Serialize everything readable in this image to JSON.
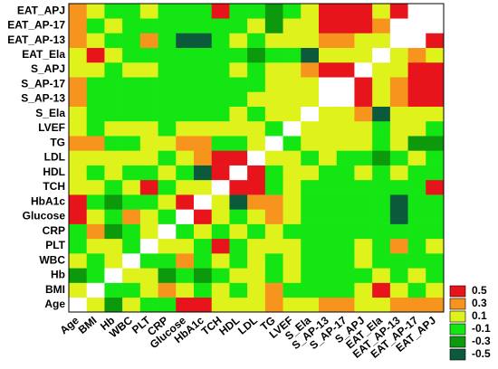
{
  "chart_data": {
    "type": "heatmap",
    "categories": [
      "Age",
      "BMI",
      "Hb",
      "WBC",
      "PLT",
      "CRP",
      "Glucose",
      "HbA1c",
      "TCH",
      "HDL",
      "LDL",
      "TG",
      "LVEF",
      "S_Ela",
      "S_AP-13",
      "S_AP-17",
      "S_APJ",
      "EAT_Ela",
      "EAT_AP-13",
      "EAT_AP-17",
      "EAT_APJ"
    ],
    "z": [
      [
        1,
        0.1,
        -0.3,
        0.1,
        -0.1,
        -0.1,
        0.5,
        0.5,
        0.1,
        0.1,
        0.1,
        0.3,
        0.1,
        0.1,
        0.3,
        0.3,
        0.1,
        0.1,
        0.3,
        0.3,
        0.3
      ],
      [
        0.1,
        1,
        -0.1,
        -0.1,
        0.1,
        0.3,
        0.1,
        -0.1,
        0.1,
        -0.1,
        0.1,
        0.3,
        -0.1,
        -0.1,
        -0.1,
        -0.1,
        0.1,
        0.5,
        0.1,
        -0.1,
        0.1
      ],
      [
        -0.3,
        -0.1,
        1,
        0.1,
        0.1,
        -0.3,
        -0.1,
        -0.3,
        -0.1,
        0.1,
        0.1,
        -0.1,
        0.1,
        -0.1,
        -0.1,
        -0.1,
        -0.1,
        0.1,
        -0.1,
        0.1,
        -0.1
      ],
      [
        0.1,
        -0.1,
        0.1,
        1,
        -0.1,
        -0.1,
        0.3,
        -0.1,
        0.1,
        -0.1,
        0.1,
        -0.1,
        0.1,
        -0.1,
        -0.1,
        -0.1,
        0.1,
        -0.1,
        -0.1,
        -0.1,
        -0.1
      ],
      [
        -0.1,
        0.1,
        0.1,
        -0.1,
        1,
        0.1,
        0.1,
        -0.1,
        0.5,
        -0.1,
        0.1,
        0.1,
        0.1,
        -0.1,
        -0.1,
        -0.1,
        0.1,
        -0.1,
        0.3,
        -0.1,
        0.1
      ],
      [
        -0.1,
        0.3,
        -0.3,
        -0.1,
        0.1,
        1,
        -0.1,
        0.1,
        -0.1,
        0.1,
        -0.1,
        0.1,
        -0.1,
        -0.1,
        -0.1,
        -0.1,
        -0.1,
        -0.1,
        -0.1,
        -0.1,
        -0.1
      ],
      [
        0.5,
        0.1,
        -0.1,
        0.3,
        0.1,
        -0.1,
        1,
        0.5,
        0.1,
        -0.1,
        0.1,
        0.3,
        0.1,
        -0.1,
        -0.1,
        -0.1,
        -0.1,
        -0.1,
        -0.5,
        -0.1,
        -0.1
      ],
      [
        0.5,
        -0.1,
        -0.3,
        -0.1,
        -0.1,
        0.1,
        0.5,
        1,
        0.1,
        -0.5,
        0.3,
        0.3,
        0.1,
        -0.1,
        -0.1,
        -0.1,
        -0.1,
        -0.1,
        -0.5,
        -0.1,
        -0.1
      ],
      [
        0.1,
        0.1,
        -0.1,
        0.1,
        0.5,
        -0.1,
        0.1,
        0.1,
        1,
        0.5,
        0.5,
        -0.1,
        0.1,
        -0.1,
        -0.1,
        -0.1,
        -0.1,
        -0.1,
        -0.1,
        -0.1,
        0.5
      ],
      [
        0.1,
        -0.1,
        0.1,
        -0.1,
        -0.1,
        0.1,
        -0.1,
        -0.5,
        0.5,
        1,
        0.5,
        -0.1,
        0.1,
        0.1,
        -0.1,
        -0.1,
        0.1,
        -0.1,
        0.1,
        -0.1,
        -0.1
      ],
      [
        0.1,
        0.1,
        0.1,
        0.1,
        0.1,
        -0.1,
        0.1,
        0.3,
        0.5,
        0.5,
        1,
        0.1,
        0.1,
        -0.1,
        0.1,
        -0.1,
        -0.1,
        -0.3,
        -0.1,
        0.1,
        -0.1
      ],
      [
        0.3,
        0.3,
        -0.1,
        -0.1,
        0.1,
        0.1,
        0.3,
        0.3,
        -0.1,
        -0.1,
        0.1,
        1,
        -0.1,
        0.1,
        0.1,
        0.1,
        0.1,
        -0.1,
        0.1,
        -0.3,
        -0.3
      ],
      [
        0.1,
        -0.1,
        0.1,
        0.1,
        0.1,
        -0.1,
        0.1,
        0.1,
        0.1,
        0.1,
        0.1,
        -0.1,
        1,
        0.1,
        0.1,
        0.1,
        0.1,
        -0.1,
        0.1,
        0.1,
        -0.1
      ],
      [
        0.1,
        -0.1,
        -0.1,
        -0.1,
        -0.1,
        -0.1,
        -0.1,
        -0.1,
        -0.1,
        0.1,
        -0.1,
        0.1,
        0.1,
        1,
        0.1,
        0.1,
        0.3,
        -0.5,
        0.1,
        0.1,
        0.1
      ],
      [
        0.3,
        -0.1,
        -0.1,
        -0.1,
        -0.1,
        -0.1,
        -0.1,
        -0.1,
        -0.1,
        -0.1,
        0.1,
        0.1,
        0.1,
        0.1,
        1,
        0.9,
        0.5,
        0.1,
        0.3,
        0.5,
        0.5
      ],
      [
        0.3,
        -0.1,
        -0.1,
        -0.1,
        -0.1,
        -0.1,
        -0.1,
        -0.1,
        -0.1,
        -0.1,
        -0.1,
        0.1,
        0.1,
        0.1,
        0.9,
        1,
        0.5,
        0.1,
        0.3,
        0.5,
        0.5
      ],
      [
        0.1,
        0.1,
        -0.1,
        0.1,
        0.1,
        -0.1,
        -0.1,
        -0.1,
        -0.1,
        0.1,
        -0.1,
        0.1,
        0.1,
        0.3,
        0.5,
        0.5,
        1,
        0.1,
        0.1,
        0.5,
        0.5
      ],
      [
        0.1,
        0.5,
        0.1,
        -0.1,
        -0.1,
        -0.1,
        -0.1,
        -0.1,
        -0.1,
        -0.1,
        -0.3,
        -0.1,
        -0.1,
        -0.5,
        0.1,
        0.1,
        0.1,
        1,
        0.1,
        0.3,
        0.1
      ],
      [
        0.3,
        0.1,
        -0.1,
        -0.1,
        0.3,
        -0.1,
        -0.5,
        -0.5,
        -0.1,
        0.1,
        -0.1,
        0.1,
        0.1,
        0.1,
        0.3,
        0.3,
        0.1,
        0.1,
        1,
        0.9,
        0.5
      ],
      [
        0.3,
        -0.1,
        0.1,
        -0.1,
        -0.1,
        -0.1,
        -0.1,
        -0.1,
        -0.1,
        -0.1,
        0.1,
        -0.3,
        0.1,
        0.1,
        0.5,
        0.5,
        0.5,
        0.3,
        0.9,
        1,
        0.9
      ],
      [
        0.3,
        0.1,
        -0.1,
        -0.1,
        0.1,
        -0.1,
        -0.1,
        -0.1,
        0.5,
        -0.1,
        -0.1,
        -0.3,
        -0.1,
        0.1,
        0.5,
        0.5,
        0.5,
        0.1,
        0.5,
        0.9,
        1
      ]
    ],
    "colorbar": {
      "ticks": [
        0.5,
        0.3,
        0.1,
        -0.1,
        -0.3,
        -0.5
      ],
      "colors": [
        "#e8141b",
        "#f7941d",
        "#dff21c",
        "#14e614",
        "#0c9a0c",
        "#0b5a3c"
      ],
      "upper_color": "#ffffff"
    }
  }
}
